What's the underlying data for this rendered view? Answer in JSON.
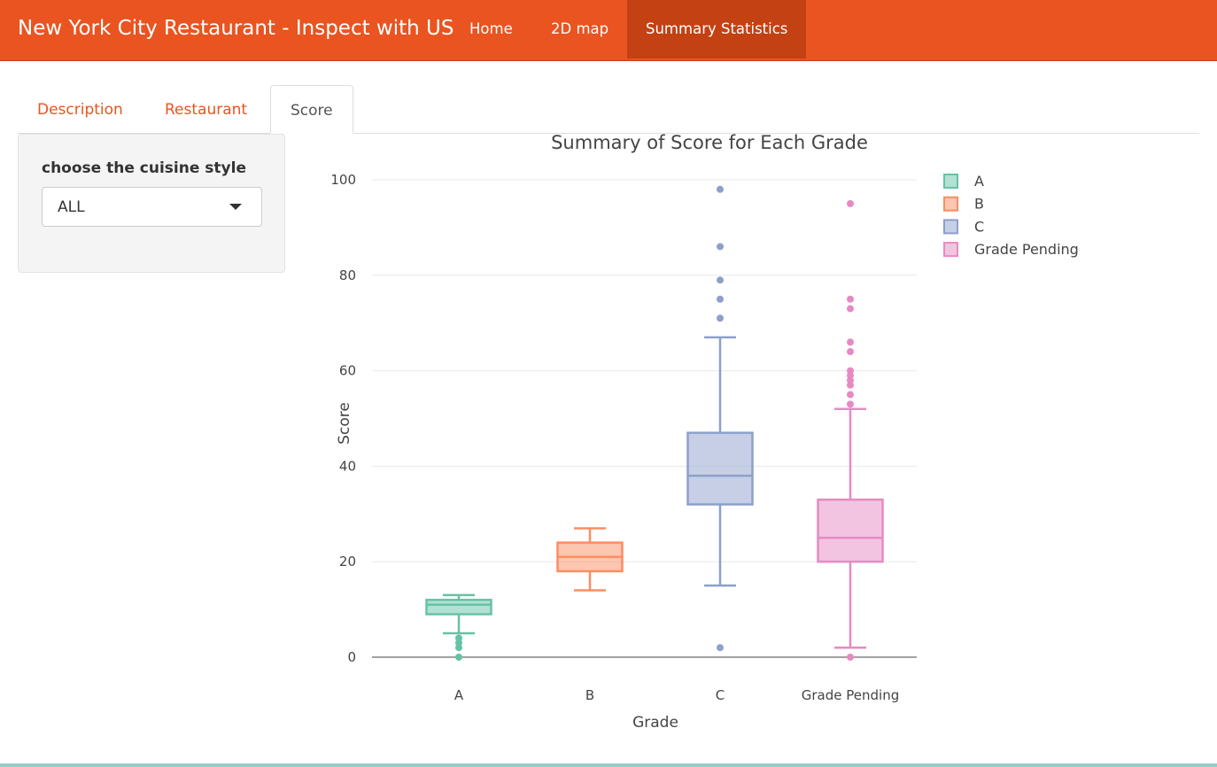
{
  "navbar": {
    "brand": "New York City Restaurant - Inspect with US",
    "items": [
      {
        "label": "Home",
        "active": false
      },
      {
        "label": "2D map",
        "active": false
      },
      {
        "label": "Summary Statistics",
        "active": true
      }
    ]
  },
  "tabs": [
    {
      "label": "Description",
      "active": false
    },
    {
      "label": "Restaurant",
      "active": false
    },
    {
      "label": "Score",
      "active": true
    }
  ],
  "sidebar": {
    "label": "choose the cuisine style",
    "select_value": "ALL"
  },
  "colors": {
    "navbar": "#e95420",
    "navbar_active": "#c34113",
    "tab_link": "#e95420",
    "A": "#66c2a5",
    "B": "#fc8d62",
    "C": "#8da0cb",
    "Grade Pending": "#e78ac3"
  },
  "chart_data": {
    "type": "box",
    "title": "Summary of Score for Each Grade",
    "xlabel": "Grade",
    "ylabel": "Score",
    "categories": [
      "A",
      "B",
      "C",
      "Grade Pending"
    ],
    "ylim": [
      0,
      100
    ],
    "yticks": [
      0,
      20,
      40,
      60,
      80,
      100
    ],
    "grid": true,
    "legend_position": "top-right",
    "series": [
      {
        "name": "A",
        "color": "#66c2a5",
        "lowerfence": 5,
        "q1": 9,
        "median": 11,
        "q3": 12,
        "upperfence": 13,
        "outliers": [
          0,
          2,
          3,
          4
        ]
      },
      {
        "name": "B",
        "color": "#fc8d62",
        "lowerfence": 14,
        "q1": 18,
        "median": 21,
        "q3": 24,
        "upperfence": 27,
        "outliers": []
      },
      {
        "name": "C",
        "color": "#8da0cb",
        "lowerfence": 15,
        "q1": 32,
        "median": 38,
        "q3": 47,
        "upperfence": 67,
        "outliers": [
          2,
          71,
          75,
          79,
          86,
          98
        ]
      },
      {
        "name": "Grade Pending",
        "color": "#e78ac3",
        "lowerfence": 2,
        "q1": 20,
        "median": 25,
        "q3": 33,
        "upperfence": 52,
        "outliers": [
          0,
          53,
          55,
          57,
          58,
          59,
          60,
          64,
          66,
          73,
          75,
          95
        ]
      }
    ]
  }
}
